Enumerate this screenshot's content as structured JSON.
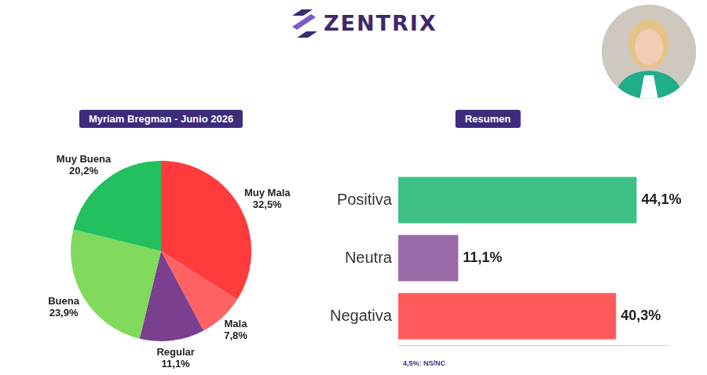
{
  "header": {
    "brand": "ZENTRIX"
  },
  "chart_data": [
    {
      "type": "pie",
      "title": "Myriam Bregman - Junio 2026",
      "categories": [
        "Muy Mala",
        "Mala",
        "Regular",
        "Buena",
        "Muy Buena"
      ],
      "values": [
        32.5,
        7.8,
        11.1,
        23.9,
        20.2
      ],
      "value_labels": [
        "32,5%",
        "7,8%",
        "11,1%",
        "23,9%",
        "20,2%"
      ],
      "colors": [
        "#ff3b3b",
        "#ff6262",
        "#7b3f8f",
        "#80db5c",
        "#22c05e"
      ],
      "data_labels": true,
      "legend": false
    },
    {
      "type": "bar",
      "title": "Resumen",
      "orientation": "horizontal",
      "categories": [
        "Positiva",
        "Neutra",
        "Negativa"
      ],
      "values": [
        44.1,
        11.1,
        40.3
      ],
      "value_labels": [
        "44,1%",
        "11,1%",
        "40,3%"
      ],
      "colors": [
        "#3dbf86",
        "#9a6aa8",
        "#ff5a5a"
      ],
      "xlim": [
        0,
        50
      ],
      "data_labels": true,
      "tick_labels": "y",
      "grid": false,
      "legend": false,
      "annotations": [
        "4,5%: NS/NC"
      ]
    }
  ]
}
